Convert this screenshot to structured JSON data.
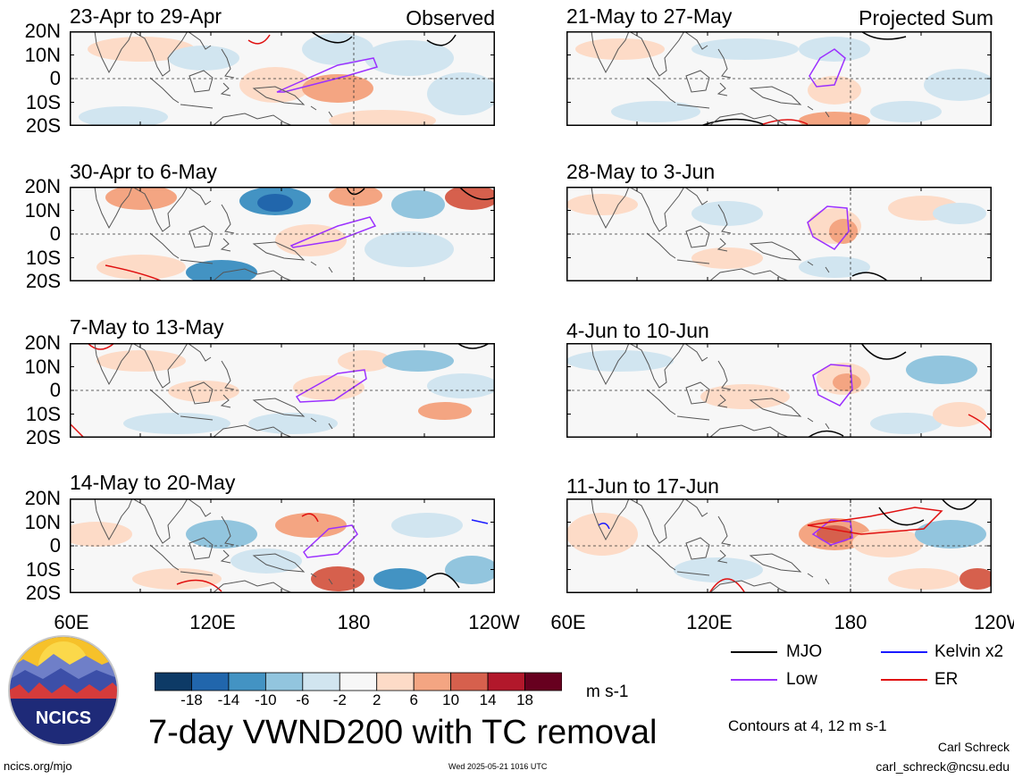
{
  "figure": {
    "title": "7-day VWND200 with TC removal",
    "units": "m s-1",
    "contour_note": "Contours at 4, 12 m s-1",
    "observed_label": "Observed",
    "projected_label": "Projected Sum",
    "author": "Carl Schreck",
    "email": "carl_schreck@ncsu.edu",
    "site": "ncics.org/mjo",
    "timestamp": "Wed 2025-05-21 1016 UTC",
    "logo_text": "NCICS"
  },
  "y_axis_labels": [
    "20N",
    "10N",
    "0",
    "10S",
    "20S"
  ],
  "x_axis_labels": [
    "60E",
    "120E",
    "180",
    "120W"
  ],
  "panels_left": [
    {
      "title": "23-Apr to 29-Apr"
    },
    {
      "title": "30-Apr to 6-May"
    },
    {
      "title": "7-May to 13-May"
    },
    {
      "title": "14-May to 20-May"
    }
  ],
  "panels_right": [
    {
      "title": "21-May to 27-May"
    },
    {
      "title": "28-May to 3-Jun"
    },
    {
      "title": "4-Jun to 10-Jun"
    },
    {
      "title": "11-Jun to 17-Jun"
    }
  ],
  "legend": [
    {
      "label": "MJO",
      "color": "#000000"
    },
    {
      "label": "Kelvin x2",
      "color": "#1a1aff"
    },
    {
      "label": "Low",
      "color": "#9b30ff"
    },
    {
      "label": "ER",
      "color": "#e01010"
    }
  ],
  "colorbar": {
    "colors": [
      "#0d3a66",
      "#2166ac",
      "#4393c3",
      "#92c5de",
      "#d1e5f0",
      "#f7f7f7",
      "#fddbc7",
      "#f4a582",
      "#d6604d",
      "#b2182b",
      "#67001f"
    ],
    "tick_labels": [
      "-18",
      "-14",
      "-10",
      "-6",
      "-2",
      "2",
      "6",
      "10",
      "14",
      "18"
    ]
  },
  "chart_data": {
    "type": "heatmap",
    "variable": "VWND200",
    "x_range": [
      "60E",
      "120W"
    ],
    "y_range": [
      "20S",
      "20N"
    ],
    "contour_levels": [
      4,
      12
    ],
    "color_levels": [
      -18,
      -14,
      -10,
      -6,
      -2,
      2,
      6,
      10,
      14,
      18
    ]
  }
}
